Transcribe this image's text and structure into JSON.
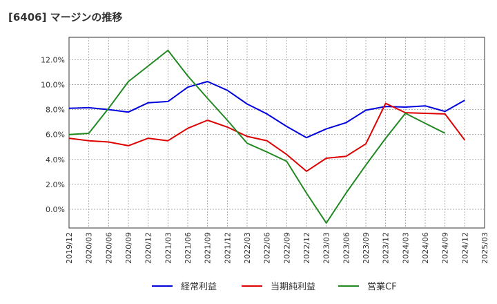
{
  "chart_data": {
    "type": "line",
    "title": "[6406]  マージンの推移",
    "x": [
      "2019/12",
      "2020/03",
      "2020/06",
      "2020/09",
      "2020/12",
      "2021/03",
      "2021/06",
      "2021/09",
      "2021/12",
      "2022/03",
      "2022/06",
      "2022/09",
      "2022/12",
      "2023/03",
      "2023/06",
      "2023/09",
      "2023/12",
      "2024/03",
      "2024/06",
      "2024/09",
      "2024/12",
      "2025/03"
    ],
    "yticks": [
      "0.0%",
      "2.0%",
      "4.0%",
      "6.0%",
      "8.0%",
      "10.0%",
      "12.0%"
    ],
    "ylim": [
      -1.5,
      13.8
    ],
    "grid": true,
    "legend_position": "bottom",
    "series": [
      {
        "name": "経常利益",
        "color": "#0000dd",
        "values": [
          8.1,
          8.15,
          8.0,
          7.8,
          8.55,
          8.65,
          9.8,
          10.25,
          9.55,
          8.45,
          7.65,
          6.65,
          5.75,
          6.45,
          6.95,
          7.95,
          8.25,
          8.2,
          8.3,
          7.85,
          8.75,
          null
        ]
      },
      {
        "name": "当期純利益",
        "color": "#dd0000",
        "values": [
          5.7,
          5.5,
          5.4,
          5.1,
          5.7,
          5.5,
          6.5,
          7.15,
          6.6,
          5.85,
          5.5,
          4.4,
          3.05,
          4.1,
          4.25,
          5.25,
          8.5,
          7.75,
          7.7,
          7.65,
          5.55,
          null
        ]
      },
      {
        "name": "営業CF",
        "color": "#228822",
        "values": [
          6.0,
          6.1,
          8.1,
          10.25,
          11.5,
          12.75,
          10.7,
          8.9,
          7.15,
          5.3,
          4.6,
          3.85,
          1.3,
          -1.1,
          1.3,
          3.55,
          5.7,
          7.7,
          6.9,
          6.1,
          null,
          null
        ]
      }
    ]
  }
}
